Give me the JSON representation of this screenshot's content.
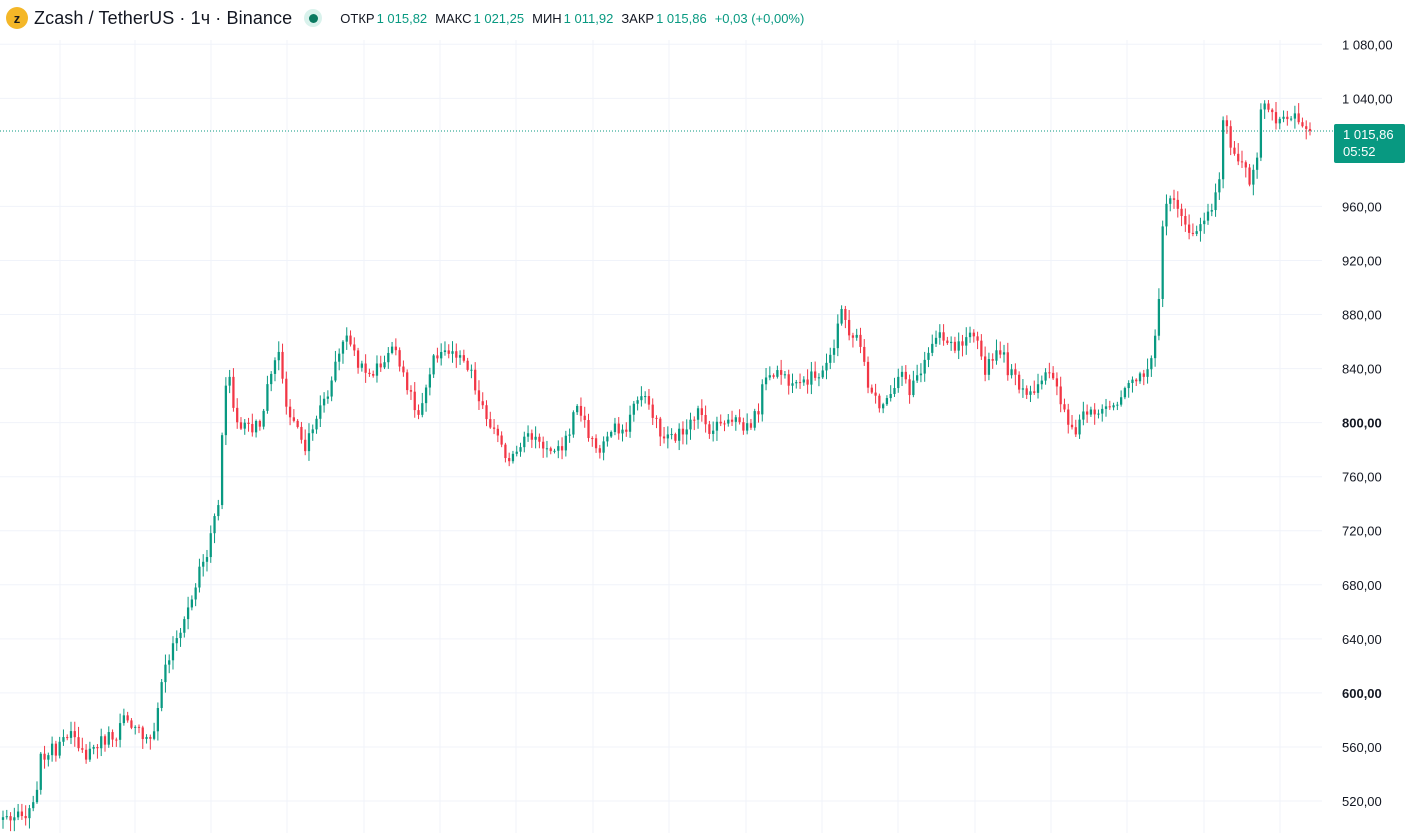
{
  "legend": {
    "coin_icon_glyph": "z",
    "symbol_title": "Zcash / TetherUS · 1ч · Binance",
    "open_label": "ОТКР",
    "open_value": "1 015,82",
    "high_label": "МАКС",
    "high_value": "1 021,25",
    "low_label": "МИН",
    "low_value": "1 011,92",
    "close_label": "ЗАКР",
    "close_value": "1 015,86",
    "change": "+0,03 (+0,00%)",
    "status": "live-status-dot"
  },
  "colors": {
    "up": "#089981",
    "down": "#f23645",
    "grid": "#f0f3fa",
    "text": "#131722",
    "coin": "#f4b728"
  },
  "price_tag": {
    "value": "1 015,86",
    "timer": "05:52"
  },
  "chart_data": {
    "type": "candlestick",
    "interval": "1ч",
    "current_price": 1015.86,
    "ylim": [
      503,
      1090
    ],
    "y_ticks": [
      {
        "value": 1080,
        "label": "1 080,00",
        "bold": false
      },
      {
        "value": 1040,
        "label": "1 040,00",
        "bold": false
      },
      {
        "value": 960,
        "label": "960,00",
        "bold": false
      },
      {
        "value": 920,
        "label": "920,00",
        "bold": false
      },
      {
        "value": 880,
        "label": "880,00",
        "bold": false
      },
      {
        "value": 840,
        "label": "840,00",
        "bold": false
      },
      {
        "value": 800,
        "label": "800,00",
        "bold": true
      },
      {
        "value": 760,
        "label": "760,00",
        "bold": false
      },
      {
        "value": 720,
        "label": "720,00",
        "bold": false
      },
      {
        "value": 680,
        "label": "680,00",
        "bold": false
      },
      {
        "value": 640,
        "label": "640,00",
        "bold": false
      },
      {
        "value": 600,
        "label": "600,00",
        "bold": true
      },
      {
        "value": 560,
        "label": "560,00",
        "bold": false
      },
      {
        "value": 520,
        "label": "520,00",
        "bold": false
      }
    ],
    "close_path": [
      [
        0,
        508
      ],
      [
        6,
        507
      ],
      [
        8,
        515
      ],
      [
        10,
        550
      ],
      [
        12,
        557
      ],
      [
        14,
        558
      ],
      [
        16,
        572
      ],
      [
        18,
        570
      ],
      [
        20,
        556
      ],
      [
        22,
        555
      ],
      [
        24,
        560
      ],
      [
        26,
        564
      ],
      [
        28,
        568
      ],
      [
        30,
        570
      ],
      [
        32,
        581
      ],
      [
        34,
        571
      ],
      [
        36,
        572
      ],
      [
        38,
        569
      ],
      [
        40,
        570
      ],
      [
        41,
        590
      ],
      [
        42,
        610
      ],
      [
        44,
        626
      ],
      [
        46,
        640
      ],
      [
        48,
        655
      ],
      [
        50,
        670
      ],
      [
        52,
        690
      ],
      [
        54,
        702
      ],
      [
        56,
        730
      ],
      [
        57,
        740
      ],
      [
        58,
        790
      ],
      [
        59,
        830
      ],
      [
        60,
        838
      ],
      [
        61,
        810
      ],
      [
        62,
        800
      ],
      [
        63,
        796
      ],
      [
        64,
        802
      ],
      [
        66,
        797
      ],
      [
        68,
        800
      ],
      [
        70,
        825
      ],
      [
        72,
        845
      ],
      [
        73,
        848
      ],
      [
        74,
        835
      ],
      [
        75,
        812
      ],
      [
        76,
        805
      ],
      [
        78,
        795
      ],
      [
        79,
        790
      ],
      [
        80,
        782
      ],
      [
        82,
        800
      ],
      [
        84,
        810
      ],
      [
        86,
        820
      ],
      [
        88,
        845
      ],
      [
        90,
        862
      ],
      [
        92,
        860
      ],
      [
        94,
        845
      ],
      [
        96,
        835
      ],
      [
        98,
        838
      ],
      [
        100,
        843
      ],
      [
        102,
        852
      ],
      [
        104,
        855
      ],
      [
        106,
        838
      ],
      [
        108,
        818
      ],
      [
        110,
        805
      ],
      [
        112,
        822
      ],
      [
        114,
        845
      ],
      [
        116,
        855
      ],
      [
        118,
        852
      ],
      [
        120,
        848
      ],
      [
        122,
        843
      ],
      [
        124,
        835
      ],
      [
        126,
        815
      ],
      [
        128,
        803
      ],
      [
        130,
        793
      ],
      [
        132,
        780
      ],
      [
        134,
        774
      ],
      [
        136,
        783
      ],
      [
        138,
        788
      ],
      [
        140,
        790
      ],
      [
        142,
        788
      ],
      [
        144,
        780
      ],
      [
        146,
        775
      ],
      [
        148,
        782
      ],
      [
        150,
        795
      ],
      [
        152,
        814
      ],
      [
        154,
        800
      ],
      [
        156,
        785
      ],
      [
        158,
        780
      ],
      [
        160,
        790
      ],
      [
        162,
        795
      ],
      [
        164,
        790
      ],
      [
        166,
        805
      ],
      [
        168,
        820
      ],
      [
        170,
        817
      ],
      [
        172,
        808
      ],
      [
        174,
        790
      ],
      [
        176,
        788
      ],
      [
        178,
        790
      ],
      [
        180,
        793
      ],
      [
        182,
        805
      ],
      [
        184,
        808
      ],
      [
        186,
        798
      ],
      [
        188,
        795
      ],
      [
        190,
        800
      ],
      [
        192,
        805
      ],
      [
        194,
        803
      ],
      [
        196,
        796
      ],
      [
        198,
        800
      ],
      [
        200,
        810
      ],
      [
        202,
        837
      ],
      [
        204,
        838
      ],
      [
        206,
        836
      ],
      [
        208,
        832
      ],
      [
        210,
        835
      ],
      [
        212,
        832
      ],
      [
        214,
        833
      ],
      [
        216,
        837
      ],
      [
        218,
        846
      ],
      [
        220,
        855
      ],
      [
        222,
        882
      ],
      [
        224,
        868
      ],
      [
        226,
        862
      ],
      [
        228,
        845
      ],
      [
        229,
        830
      ],
      [
        230,
        820
      ],
      [
        232,
        815
      ],
      [
        234,
        820
      ],
      [
        236,
        828
      ],
      [
        238,
        837
      ],
      [
        240,
        820
      ],
      [
        242,
        835
      ],
      [
        244,
        845
      ],
      [
        246,
        858
      ],
      [
        248,
        862
      ],
      [
        250,
        857
      ],
      [
        252,
        855
      ],
      [
        254,
        857
      ],
      [
        256,
        862
      ],
      [
        258,
        857
      ],
      [
        260,
        840
      ],
      [
        262,
        850
      ],
      [
        264,
        855
      ],
      [
        266,
        840
      ],
      [
        268,
        832
      ],
      [
        270,
        826
      ],
      [
        272,
        823
      ],
      [
        274,
        830
      ],
      [
        276,
        838
      ],
      [
        278,
        830
      ],
      [
        280,
        815
      ],
      [
        282,
        798
      ],
      [
        284,
        795
      ],
      [
        286,
        808
      ],
      [
        288,
        812
      ],
      [
        290,
        810
      ],
      [
        292,
        814
      ],
      [
        294,
        808
      ],
      [
        296,
        818
      ],
      [
        298,
        825
      ],
      [
        300,
        830
      ],
      [
        302,
        838
      ],
      [
        304,
        848
      ],
      [
        305,
        860
      ],
      [
        306,
        890
      ],
      [
        307,
        950
      ],
      [
        308,
        965
      ],
      [
        310,
        962
      ],
      [
        312,
        950
      ],
      [
        314,
        945
      ],
      [
        316,
        940
      ],
      [
        318,
        950
      ],
      [
        320,
        960
      ],
      [
        322,
        985
      ],
      [
        323,
        1020
      ],
      [
        324,
        1015
      ],
      [
        326,
        1000
      ],
      [
        328,
        990
      ],
      [
        330,
        980
      ],
      [
        332,
        1000
      ],
      [
        333,
        1030
      ],
      [
        334,
        1038
      ],
      [
        336,
        1025
      ],
      [
        338,
        1023
      ],
      [
        340,
        1020
      ],
      [
        342,
        1027
      ],
      [
        344,
        1016
      ],
      [
        346,
        1015.86
      ]
    ]
  }
}
